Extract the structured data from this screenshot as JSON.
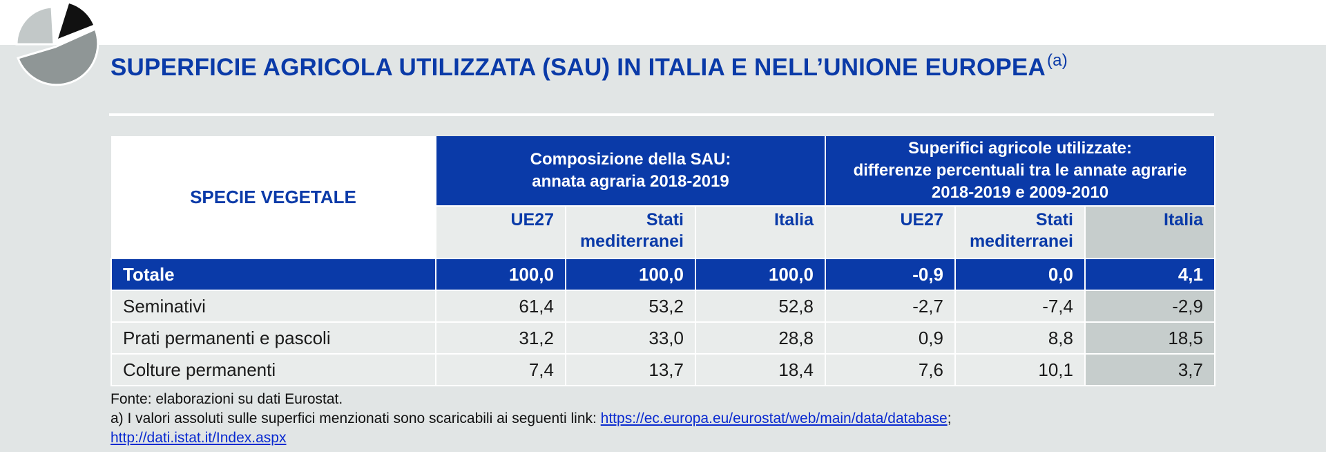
{
  "colors": {
    "accent": "#0a3aa8",
    "band": "#e1e5e5",
    "italia_col": "#c6cdcc"
  },
  "logo": {
    "icon": "pie-chart-icon"
  },
  "title": {
    "text": "SUPERFICIE AGRICOLA UTILIZZATA (SAU) IN ITALIA E NELL’UNIONE EUROPEA",
    "note_mark": "(a)"
  },
  "table": {
    "specie_header": "SPECIE VEGETALE",
    "group1": {
      "line1": "Composizione della SAU:",
      "line2": "annata agraria 2018-2019"
    },
    "group2": {
      "line1": "Superifici agricole utilizzate:",
      "line2": "differenze percentuali tra le annate agrarie",
      "line3": "2018-2019 e 2009-2010"
    },
    "sub": {
      "ue27": "UE27",
      "stati_1": "Stati",
      "stati_2": "mediterranei",
      "italia": "Italia"
    },
    "rows": [
      {
        "label": "Totale",
        "values": [
          "100,0",
          "100,0",
          "100,0",
          "-0,9",
          "0,0",
          "4,1"
        ]
      },
      {
        "label": "Seminativi",
        "values": [
          "61,4",
          "53,2",
          "52,8",
          "-2,7",
          "-7,4",
          "-2,9"
        ]
      },
      {
        "label": "Prati permanenti e pascoli",
        "values": [
          "31,2",
          "33,0",
          "28,8",
          "0,9",
          "8,8",
          "18,5"
        ]
      },
      {
        "label": "Colture permanenti",
        "values": [
          "7,4",
          "13,7",
          "18,4",
          "7,6",
          "10,1",
          "3,7"
        ]
      }
    ]
  },
  "notes": {
    "source": "Fonte: elaborazioni su dati Eurostat.",
    "note_a": "a) I valori assoluti sulle superfici menzionati sono scaricabili ai seguenti link: ",
    "link1": "https://ec.europa.eu/eurostat/web/main/data/database",
    "sep": ";",
    "link2": "http://dati.istat.it/Index.aspx"
  }
}
